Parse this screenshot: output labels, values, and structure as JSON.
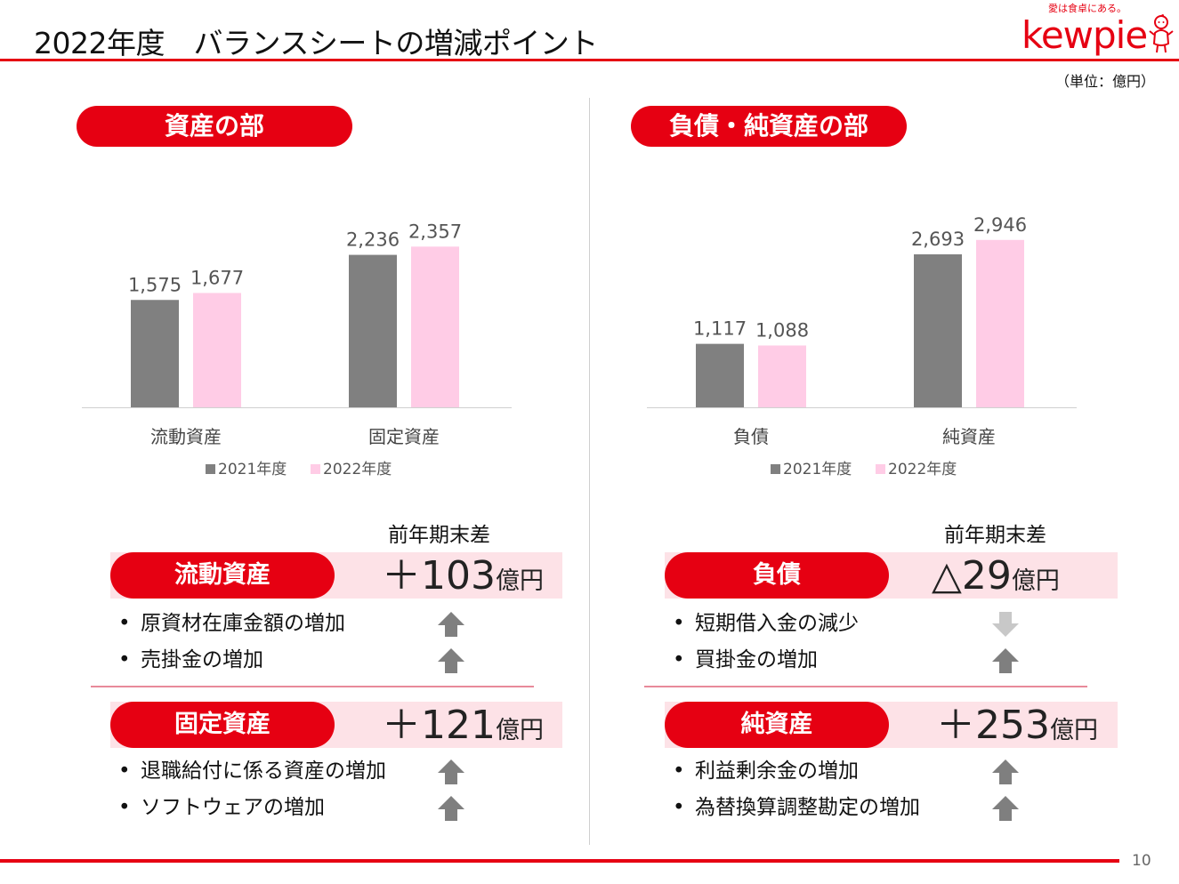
{
  "header": {
    "title": "2022年度　バランスシートの増減ポイント",
    "brand": "kewpie",
    "slogan": "愛は食卓にある。",
    "unit": "（単位：億円）"
  },
  "sections": {
    "assets_title": "資産の部",
    "liabilities_title": "負債・純資産の部"
  },
  "diff_header": "前年期末差",
  "chart_data": [
    {
      "type": "bar",
      "categories": [
        "流動資産",
        "固定資産"
      ],
      "series": [
        {
          "name": "2021年度",
          "values": [
            1575,
            2236
          ]
        },
        {
          "name": "2022年度",
          "values": [
            1677,
            2357
          ]
        }
      ],
      "labels": [
        [
          "1,575",
          "2,236"
        ],
        [
          "1,677",
          "2,357"
        ]
      ],
      "title": "",
      "xlabel": "",
      "ylabel": "",
      "ylim": [
        0,
        3000
      ],
      "legend_position": "bottom",
      "grid": false,
      "colors": [
        "#808080",
        "#ffcce6"
      ]
    },
    {
      "type": "bar",
      "categories": [
        "負債",
        "純資産"
      ],
      "series": [
        {
          "name": "2021年度",
          "values": [
            1117,
            2693
          ]
        },
        {
          "name": "2022年度",
          "values": [
            1088,
            2946
          ]
        }
      ],
      "labels": [
        [
          "1,117",
          "2,693"
        ],
        [
          "1,088",
          "2,946"
        ]
      ],
      "title": "",
      "xlabel": "",
      "ylabel": "",
      "ylim": [
        0,
        3600
      ],
      "legend_position": "bottom",
      "grid": false,
      "colors": [
        "#808080",
        "#ffcce6"
      ]
    }
  ],
  "changes": {
    "current_assets": {
      "label": "流動資産",
      "value": "＋103",
      "unit": "億円",
      "items": [
        {
          "text": "原資材在庫金額の増加",
          "direction": "up"
        },
        {
          "text": "売掛金の増加",
          "direction": "up"
        }
      ]
    },
    "fixed_assets": {
      "label": "固定資産",
      "value": "＋121",
      "unit": "億円",
      "items": [
        {
          "text": "退職給付に係る資産の増加",
          "direction": "up"
        },
        {
          "text": "ソフトウェアの増加",
          "direction": "up"
        }
      ]
    },
    "liabilities": {
      "label": "負債",
      "value": "△29",
      "unit": "億円",
      "items": [
        {
          "text": "短期借入金の減少",
          "direction": "down"
        },
        {
          "text": "買掛金の増加",
          "direction": "up"
        }
      ]
    },
    "net_assets": {
      "label": "純資産",
      "value": "＋253",
      "unit": "億円",
      "items": [
        {
          "text": "利益剰余金の増加",
          "direction": "up"
        },
        {
          "text": "為替換算調整勘定の増加",
          "direction": "up"
        }
      ]
    }
  },
  "bullet_char": "•",
  "page_number": "10",
  "colors": {
    "brand_red": "#e60012",
    "band_pink": "#fde2e7",
    "bar_2021": "#808080",
    "bar_2022": "#ffcce6",
    "arrow_up": "#7f7f7f",
    "arrow_down": "#c8c8c8"
  }
}
